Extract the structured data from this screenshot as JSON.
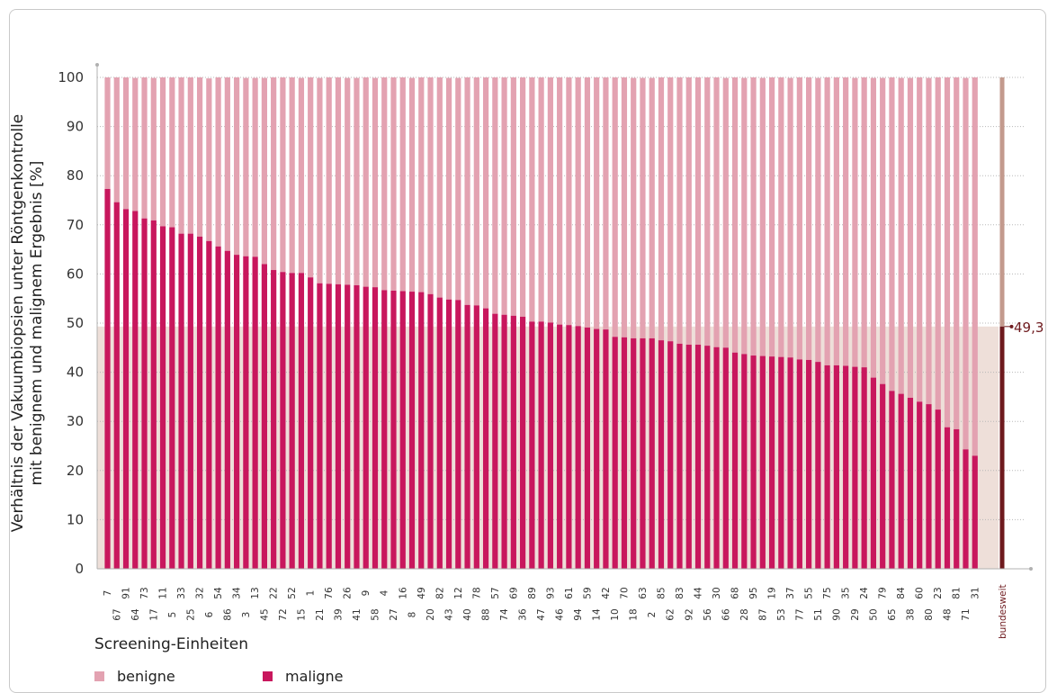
{
  "chart_data": {
    "type": "bar",
    "stacked": true,
    "ylabel_lines": [
      "Verhältnis der Vakuumbiopsien unter Röntgenkontrolle",
      "mit benignem und malignem Ergebnis [%]"
    ],
    "xlabel": "Screening-Einheiten",
    "ylim": [
      0,
      100
    ],
    "yticks": [
      0,
      10,
      20,
      30,
      40,
      50,
      60,
      70,
      80,
      90,
      100
    ],
    "grid": true,
    "categories": [
      "7",
      "67",
      "91",
      "64",
      "73",
      "17",
      "11",
      "5",
      "33",
      "25",
      "32",
      "6",
      "54",
      "86",
      "34",
      "3",
      "13",
      "45",
      "22",
      "72",
      "52",
      "15",
      "1",
      "21",
      "76",
      "39",
      "26",
      "41",
      "9",
      "58",
      "4",
      "27",
      "16",
      "8",
      "49",
      "20",
      "82",
      "43",
      "12",
      "40",
      "78",
      "88",
      "57",
      "74",
      "69",
      "36",
      "89",
      "47",
      "93",
      "46",
      "61",
      "94",
      "59",
      "14",
      "42",
      "10",
      "70",
      "18",
      "63",
      "2",
      "85",
      "62",
      "83",
      "92",
      "44",
      "56",
      "30",
      "66",
      "68",
      "28",
      "95",
      "87",
      "19",
      "53",
      "37",
      "77",
      "55",
      "51",
      "75",
      "90",
      "35",
      "29",
      "24",
      "50",
      "79",
      "65",
      "84",
      "38",
      "60",
      "80",
      "23",
      "48",
      "81",
      "71",
      "31"
    ],
    "series": [
      {
        "name": "maligne",
        "color": "#c8175d",
        "values": [
          77.3,
          74.6,
          73.2,
          72.8,
          71.3,
          70.9,
          69.7,
          69.5,
          68.2,
          68.2,
          67.6,
          66.7,
          65.6,
          64.7,
          63.9,
          63.6,
          63.5,
          62.0,
          60.8,
          60.4,
          60.2,
          60.2,
          59.3,
          58.1,
          58.0,
          57.9,
          57.8,
          57.7,
          57.4,
          57.3,
          56.7,
          56.6,
          56.5,
          56.4,
          56.3,
          55.9,
          55.2,
          54.8,
          54.7,
          53.7,
          53.6,
          53.0,
          51.9,
          51.7,
          51.5,
          51.3,
          50.3,
          50.3,
          50.1,
          49.7,
          49.6,
          49.4,
          49.1,
          48.8,
          48.7,
          47.2,
          47.1,
          46.9,
          46.9,
          46.9,
          46.5,
          46.3,
          45.8,
          45.6,
          45.6,
          45.4,
          45.1,
          45.0,
          44.0,
          43.7,
          43.4,
          43.3,
          43.2,
          43.1,
          43.0,
          42.6,
          42.5,
          42.1,
          41.4,
          41.4,
          41.3,
          41.1,
          41.0,
          38.9,
          37.6,
          36.2,
          35.6,
          34.8,
          34.0,
          33.5,
          32.4,
          28.8,
          28.4,
          24.3,
          23.0
        ]
      },
      {
        "name": "benigne",
        "color": "#e3a2b1"
      }
    ],
    "total_values": [
      100,
      100,
      100,
      99.9,
      100,
      99.9,
      100,
      100,
      100,
      100,
      100,
      99.8,
      100,
      100,
      100,
      99.9,
      99.9,
      99.9,
      100,
      100,
      100,
      99.9,
      100,
      99.9,
      100,
      100,
      99.9,
      99.9,
      100,
      99.9,
      100,
      100,
      100,
      99.9,
      100,
      100,
      100,
      99.9,
      99.9,
      100,
      100,
      100,
      100,
      100,
      100,
      100,
      100,
      100,
      100,
      100,
      100,
      100,
      100,
      100,
      100,
      100,
      100,
      99.9,
      99.9,
      99.9,
      100,
      100,
      100,
      100,
      100,
      100,
      100,
      99.9,
      100,
      99.9,
      100,
      99.9,
      100,
      100,
      99.9,
      100,
      100,
      99.9,
      100,
      100,
      100,
      99.9,
      100,
      99.9,
      99.9,
      100,
      99.9,
      99.9,
      100,
      99.9,
      100,
      100,
      100,
      99.9,
      100
    ],
    "reference": {
      "label": "bundesweit",
      "maligne": 49.3,
      "value_label": "49,3",
      "color_maligne": "#6e1a1e",
      "color_benigne": "#c39a8d",
      "band_color": "#eedfd9"
    },
    "legend": [
      {
        "label": "benigne",
        "color": "#e3a2b1"
      },
      {
        "label": "maligne",
        "color": "#c8175d"
      }
    ]
  }
}
